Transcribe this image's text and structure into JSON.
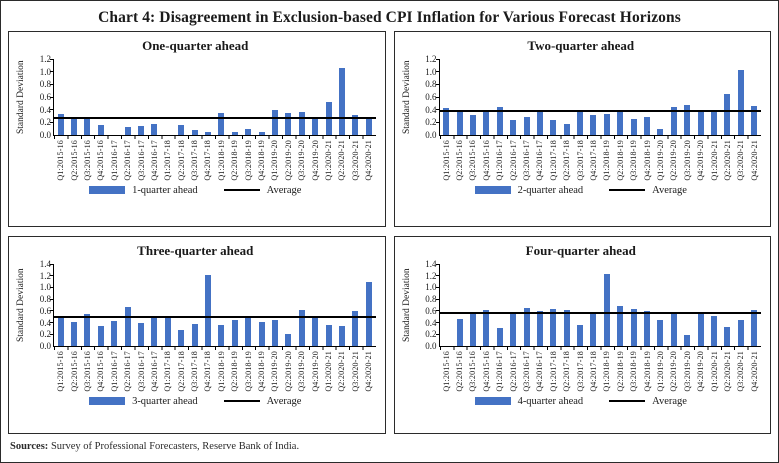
{
  "figure": {
    "title": "Chart 4: Disagreement in Exclusion-based CPI Inflation for Various Forecast Horizons",
    "sources_label": "Sources:",
    "sources_text": "Survey of Professional Forecasters, Reserve Bank of India."
  },
  "colors": {
    "bar": "#4472c4",
    "average_line": "#000000",
    "panel_border": "#2b2b2b",
    "figure_border": "#2b2b2b"
  },
  "chart_data": [
    {
      "type": "bar",
      "title": "One-quarter ahead",
      "ylabel": "Standard Deviation",
      "ylim": [
        0,
        1.2
      ],
      "ytick_step": 0.2,
      "grid": false,
      "legend_position": "bottom",
      "legend": [
        "1-quarter ahead",
        "Average"
      ],
      "average": 0.27,
      "categories": [
        "Q1:2015-16",
        "Q2:2015-16",
        "Q3:2015-16",
        "Q4:2015-16",
        "Q1:2016-17",
        "Q2:2016-17",
        "Q3:2016-17",
        "Q4:2016-17",
        "Q1:2017-18",
        "Q2:2017-18",
        "Q3:2017-18",
        "Q4:2017-18",
        "Q1:2018-19",
        "Q2:2018-19",
        "Q3:2018-19",
        "Q4:2018-19",
        "Q1:2019-20",
        "Q2:2019-20",
        "Q3:2019-20",
        "Q4:2019-20",
        "Q1:2020-21",
        "Q2:2020-21",
        "Q3:2020-21",
        "Q4:2020-21"
      ],
      "values": [
        0.33,
        0.27,
        0.26,
        0.16,
        0,
        0.12,
        0.14,
        0.17,
        0,
        0.15,
        0.08,
        0.05,
        0.35,
        0.05,
        0.1,
        0.04,
        0.39,
        0.34,
        0.37,
        0.27,
        0.52,
        1.05,
        0.32,
        0.26
      ]
    },
    {
      "type": "bar",
      "title": "Two-quarter ahead",
      "ylabel": "Standard Deviation",
      "ylim": [
        0,
        1.2
      ],
      "ytick_step": 0.2,
      "grid": false,
      "legend_position": "bottom",
      "legend": [
        "2-quarter ahead",
        "Average"
      ],
      "average": 0.38,
      "categories": [
        "Q1:2015-16",
        "Q2:2015-16",
        "Q3:2015-16",
        "Q4:2015-16",
        "Q1:2016-17",
        "Q2:2016-17",
        "Q3:2016-17",
        "Q4:2016-17",
        "Q1:2017-18",
        "Q2:2017-18",
        "Q3:2017-18",
        "Q4:2017-18",
        "Q1:2018-19",
        "Q2:2018-19",
        "Q3:2018-19",
        "Q4:2018-19",
        "Q1:2019-20",
        "Q2:2019-20",
        "Q3:2019-20",
        "Q4:2019-20",
        "Q1:2020-21",
        "Q2:2020-21",
        "Q3:2020-21",
        "Q4:2020-21"
      ],
      "values": [
        0.42,
        0.4,
        0.31,
        0.38,
        0.44,
        0.23,
        0.29,
        0.38,
        0.24,
        0.17,
        0.38,
        0.31,
        0.33,
        0.38,
        0.26,
        0.28,
        0.09,
        0.44,
        0.48,
        0.36,
        0.37,
        0.64,
        1.02,
        0.46
      ]
    },
    {
      "type": "bar",
      "title": "Three-quarter ahead",
      "ylabel": "Standard Deviation",
      "ylim": [
        0,
        1.4
      ],
      "ytick_step": 0.2,
      "grid": false,
      "legend_position": "bottom",
      "legend": [
        "3-quarter ahead",
        "Average"
      ],
      "average": 0.5,
      "categories": [
        "Q1:2015-16",
        "Q2:2015-16",
        "Q3:2015-16",
        "Q4:2015-16",
        "Q1:2016-17",
        "Q2:2016-17",
        "Q3:2016-17",
        "Q4:2016-17",
        "Q1:2017-18",
        "Q2:2017-18",
        "Q3:2017-18",
        "Q4:2017-18",
        "Q1:2018-19",
        "Q2:2018-19",
        "Q3:2018-19",
        "Q4:2018-19",
        "Q1:2019-20",
        "Q2:2019-20",
        "Q3:2019-20",
        "Q4:2019-20",
        "Q1:2020-21",
        "Q2:2020-21",
        "Q3:2020-21",
        "Q4:2020-21"
      ],
      "values": [
        0.47,
        0.41,
        0.54,
        0.34,
        0.42,
        0.67,
        0.39,
        0.5,
        0.47,
        0.28,
        0.37,
        1.21,
        0.35,
        0.45,
        0.49,
        0.41,
        0.44,
        0.2,
        0.61,
        0.5,
        0.35,
        0.34,
        0.6,
        1.09
      ]
    },
    {
      "type": "bar",
      "title": "Four-quarter ahead",
      "ylabel": "Standard Deviation",
      "ylim": [
        0,
        1.4
      ],
      "ytick_step": 0.2,
      "grid": false,
      "legend_position": "bottom",
      "legend": [
        "4-quarter ahead",
        "Average"
      ],
      "average": 0.56,
      "categories": [
        "Q1:2015-16",
        "Q2:2015-16",
        "Q3:2015-16",
        "Q4:2015-16",
        "Q1:2016-17",
        "Q2:2016-17",
        "Q3:2016-17",
        "Q4:2016-17",
        "Q1:2017-18",
        "Q2:2017-18",
        "Q3:2017-18",
        "Q4:2017-18",
        "Q1:2018-19",
        "Q2:2018-19",
        "Q3:2018-19",
        "Q4:2018-19",
        "Q1:2019-20",
        "Q2:2019-20",
        "Q3:2019-20",
        "Q4:2019-20",
        "Q1:2020-21",
        "Q2:2020-21",
        "Q3:2020-21",
        "Q4:2020-21"
      ],
      "values": [
        0,
        0.46,
        0.57,
        0.62,
        0.3,
        0.58,
        0.65,
        0.6,
        0.63,
        0.61,
        0.36,
        0.56,
        1.23,
        0.68,
        0.64,
        0.59,
        0.45,
        0.56,
        0.18,
        0.57,
        0.51,
        0.33,
        0.44,
        0.62
      ]
    }
  ]
}
